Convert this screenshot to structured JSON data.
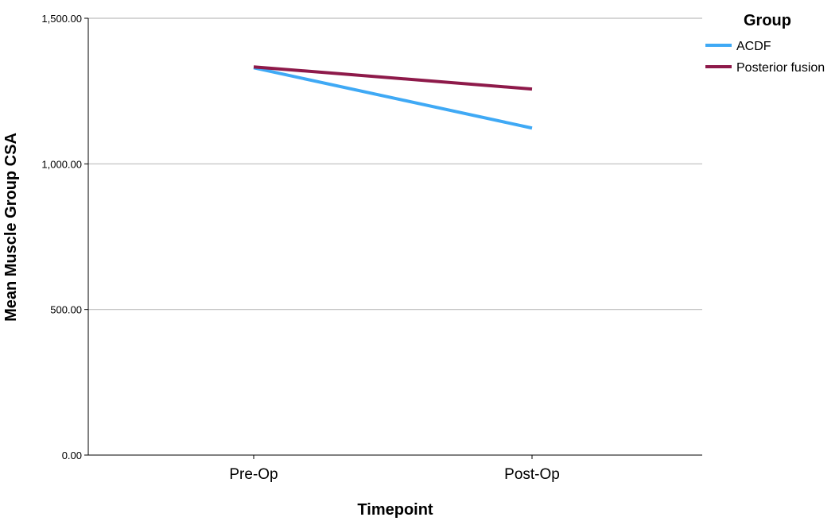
{
  "chart_data": {
    "type": "line",
    "categories": [
      "Pre-Op",
      "Post-Op"
    ],
    "series": [
      {
        "name": "ACDF",
        "values": [
          1330,
          1123
        ],
        "color": "#3fa9f5"
      },
      {
        "name": "Posterior fusion",
        "values": [
          1333,
          1257
        ],
        "color": "#8e1a4a"
      }
    ],
    "title": "",
    "xlabel": "Timepoint",
    "ylabel": "Mean Muscle Group CSA",
    "ylim": [
      0,
      1500
    ],
    "yticks": [
      0,
      500,
      1000,
      1500
    ],
    "ytick_labels": [
      "0.00",
      "500.00",
      "1,000.00",
      "1,500.00"
    ],
    "grid": true,
    "legend": {
      "title": "Group",
      "placement": "top-right outside"
    }
  }
}
